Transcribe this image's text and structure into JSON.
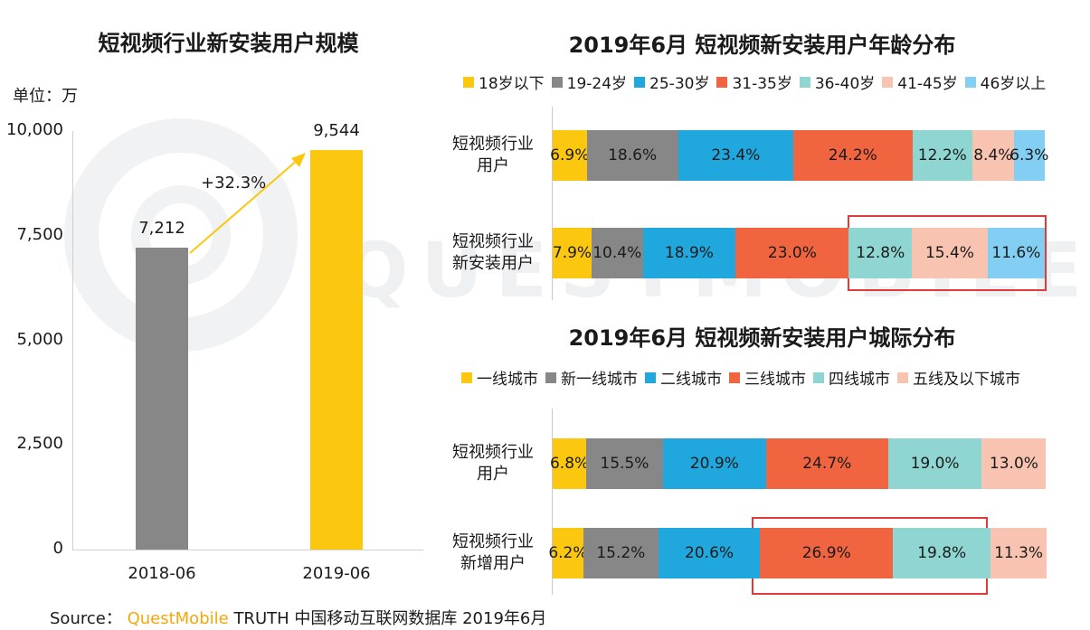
{
  "left": {
    "title": "短视频行业新安装用户规模",
    "unit": "单位：万",
    "growth": "+32.3%"
  },
  "right_top": {
    "title": "2019年6月 短视频新安装用户年龄分布"
  },
  "right_bottom": {
    "title": "2019年6月 短视频新安装用户城际分布"
  },
  "source": {
    "prefix": "Source：",
    "brand": "QuestMobile",
    "rest": "TRUTH 中国移动互联网数据库 2019年6月"
  },
  "chart_data": [
    {
      "type": "bar",
      "title": "短视频行业新安装用户规模",
      "ylabel": "单位：万",
      "categories": [
        "2018-06",
        "2019-06"
      ],
      "values": [
        7212,
        9544
      ],
      "value_labels": [
        "7,212",
        "9,544"
      ],
      "ylim": [
        0,
        10000
      ],
      "yticks": [
        0,
        2500,
        5000,
        7500,
        10000
      ],
      "ytick_labels": [
        "0",
        "2,500",
        "5,000",
        "7,500",
        "10,000"
      ],
      "colors": [
        "#878787",
        "#fbc70f"
      ],
      "annotation": "+32.3%"
    },
    {
      "type": "bar",
      "title": "2019年6月 短视频新安装用户年龄分布",
      "orientation": "horizontal-stacked-100",
      "categories": [
        "短视频行业用户",
        "短视频行业新安装用户"
      ],
      "series": [
        {
          "name": "18岁以下",
          "color": "#fbc70f",
          "values": [
            6.9,
            7.9
          ]
        },
        {
          "name": "19-24岁",
          "color": "#878787",
          "values": [
            18.6,
            10.4
          ]
        },
        {
          "name": "25-30岁",
          "color": "#1fa7de",
          "values": [
            23.4,
            18.9
          ]
        },
        {
          "name": "31-35岁",
          "color": "#f0653f",
          "values": [
            24.2,
            23.0
          ]
        },
        {
          "name": "36-40岁",
          "color": "#8fd6d3",
          "values": [
            12.2,
            12.8
          ]
        },
        {
          "name": "41-45岁",
          "color": "#f8c3b0",
          "values": [
            8.4,
            15.4
          ]
        },
        {
          "name": "46岁以上",
          "color": "#82cff3",
          "values": [
            6.3,
            11.6
          ]
        }
      ],
      "legend": "top"
    },
    {
      "type": "bar",
      "title": "2019年6月 短视频新安装用户城际分布",
      "orientation": "horizontal-stacked-100",
      "categories": [
        "短视频行业用户",
        "短视频行业新增用户"
      ],
      "series": [
        {
          "name": "一线城市",
          "color": "#fbc70f",
          "values": [
            6.8,
            6.2
          ]
        },
        {
          "name": "新一线城市",
          "color": "#878787",
          "values": [
            15.5,
            15.2
          ]
        },
        {
          "name": "二线城市",
          "color": "#1fa7de",
          "values": [
            20.9,
            20.6
          ]
        },
        {
          "name": "三线城市",
          "color": "#f0653f",
          "values": [
            24.7,
            26.9
          ]
        },
        {
          "name": "四线城市",
          "color": "#8fd6d3",
          "values": [
            19.0,
            19.8
          ]
        },
        {
          "name": "五线及以下城市",
          "color": "#f8c3b0",
          "values": [
            13.0,
            11.3
          ]
        }
      ],
      "legend": "top"
    }
  ]
}
